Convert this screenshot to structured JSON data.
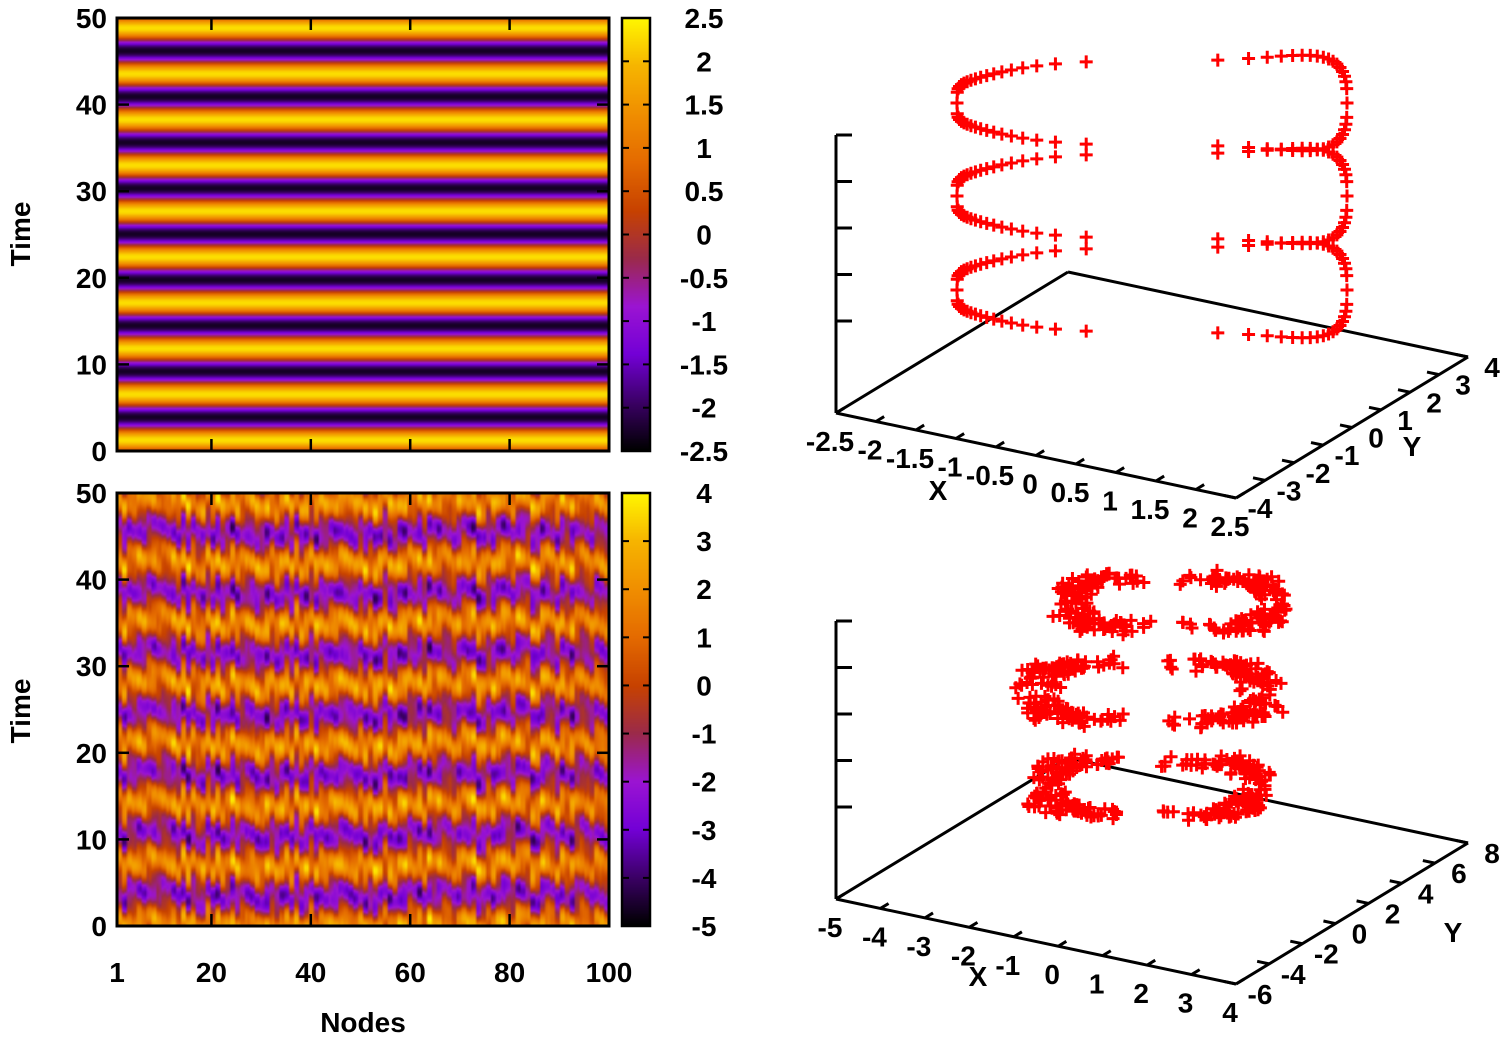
{
  "chart_data": [
    {
      "type": "heatmap",
      "panel": "top-left",
      "xlabel": "",
      "ylabel": "Time",
      "xlim": [
        1,
        100
      ],
      "ylim": [
        0,
        50
      ],
      "y_ticks": [
        "0",
        "10",
        "20",
        "30",
        "40",
        "50"
      ],
      "x_ticks": [
        "1",
        "20",
        "40",
        "60",
        "80",
        "100"
      ],
      "x_tick_labels_shown": false,
      "colorbar": {
        "min": -2.5,
        "max": 2.5,
        "ticks": [
          "2.5",
          "2",
          "1.5",
          "1",
          "0.5",
          "0",
          "-0.5",
          "-1",
          "-1.5",
          "-2",
          "-2.5"
        ]
      },
      "pattern": "horizontal stripes, uniform across nodes, oscillation period ~5.3 time units, amplitude ~2.3",
      "amplitude": 2.3,
      "period": 5.3
    },
    {
      "type": "scatter",
      "panel": "top-right",
      "projection": "3d",
      "xlabel": "X",
      "ylabel": "Y",
      "xlim": [
        -2.5,
        2.5
      ],
      "ylim": [
        -4,
        4
      ],
      "x_ticks": [
        "-2.5",
        "-2",
        "-1.5",
        "-1",
        "-0.5",
        "0",
        "0.5",
        "1",
        "1.5",
        "2",
        "2.5"
      ],
      "y_ticks": [
        "-4",
        "-3",
        "-2",
        "-1",
        "0",
        "1",
        "2",
        "3",
        "4"
      ],
      "z_tick_labels_shown": false,
      "marker": "+",
      "color": "#ff0000",
      "layers": 3,
      "description_series": "three stacked regular closed loops (limit cycle)"
    },
    {
      "type": "heatmap",
      "panel": "bottom-left",
      "xlabel": "Nodes",
      "ylabel": "Time",
      "xlim": [
        1,
        100
      ],
      "ylim": [
        0,
        50
      ],
      "x_ticks": [
        "1",
        "20",
        "40",
        "60",
        "80",
        "100"
      ],
      "y_ticks": [
        "0",
        "10",
        "20",
        "30",
        "40",
        "50"
      ],
      "colorbar": {
        "min": -5,
        "max": 4,
        "ticks": [
          "4",
          "3",
          "2",
          "1",
          "0",
          "-1",
          "-2",
          "-3",
          "-4",
          "-5"
        ]
      },
      "pattern": "irregular horizontal banding with node-to-node variation",
      "period": 7.0
    },
    {
      "type": "scatter",
      "panel": "bottom-right",
      "projection": "3d",
      "xlabel": "X",
      "ylabel": "Y",
      "xlim": [
        -5,
        4
      ],
      "ylim": [
        -6,
        8
      ],
      "x_ticks": [
        "-5",
        "-4",
        "-3",
        "-2",
        "-1",
        "0",
        "1",
        "2",
        "3",
        "4"
      ],
      "y_ticks": [
        "-6",
        "-4",
        "-2",
        "0",
        "2",
        "4",
        "6",
        "8"
      ],
      "z_tick_labels_shown": false,
      "marker": "+",
      "color": "#ff0000",
      "layers": 3,
      "description_series": "three stacked irregular tangled loops"
    }
  ],
  "colormap": [
    "#000000",
    "#3b0066",
    "#7300d6",
    "#9b14d2",
    "#9b2a4a",
    "#c74200",
    "#e46a00",
    "#f08e00",
    "#f6b400",
    "#fff600"
  ],
  "marker_color": "#ff0000"
}
